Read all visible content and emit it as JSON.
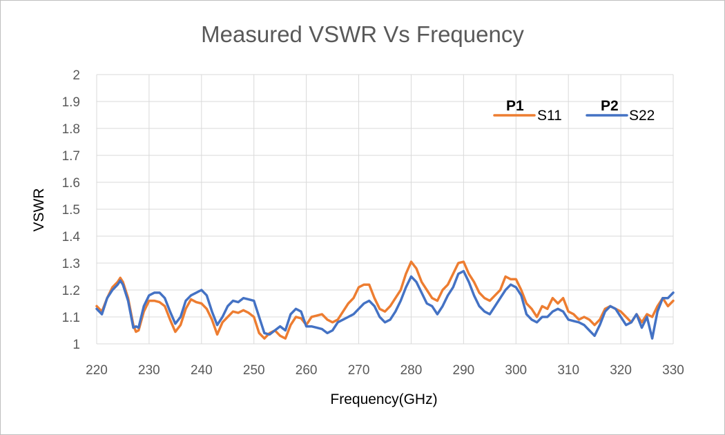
{
  "chart_data": {
    "type": "line",
    "title": "Measured VSWR Vs Frequency",
    "xlabel": "Frequency(GHz)",
    "ylabel": "VSWR",
    "xlim": [
      220,
      330
    ],
    "ylim": [
      1,
      2
    ],
    "x_ticks": [
      "220",
      "230",
      "240",
      "250",
      "260",
      "270",
      "280",
      "290",
      "300",
      "310",
      "320",
      "330"
    ],
    "y_ticks": [
      "1",
      "1.1",
      "1.2",
      "1.3",
      "1.4",
      "1.5",
      "1.6",
      "1.7",
      "1.8",
      "1.9",
      "2"
    ],
    "grid": true,
    "legend_position": "top-right",
    "series": [
      {
        "name": "S11",
        "tag": "P1",
        "color": "#ED7D31",
        "x": [
          220,
          221,
          222,
          223,
          224,
          224.5,
          225,
          226,
          227,
          227.5,
          228,
          229,
          230,
          231,
          232,
          233,
          234,
          235,
          236,
          237,
          238,
          239,
          240,
          241,
          242,
          243,
          244,
          245,
          246,
          247,
          248,
          249,
          250,
          251,
          252,
          253,
          254,
          255,
          256,
          257,
          258,
          259,
          260,
          261,
          262,
          263,
          264,
          265,
          266,
          267,
          268,
          269,
          270,
          271,
          272,
          273,
          274,
          275,
          276,
          277,
          278,
          279,
          280,
          281,
          282,
          283,
          284,
          285,
          286,
          287,
          288,
          289,
          290,
          291,
          292,
          293,
          294,
          295,
          296,
          297,
          298,
          299,
          300,
          301,
          302,
          303,
          304,
          305,
          306,
          307,
          308,
          309,
          310,
          311,
          312,
          313,
          314,
          315,
          316,
          317,
          318,
          319,
          320,
          321,
          322,
          323,
          324,
          325,
          326,
          327,
          328,
          329,
          330
        ],
        "values": [
          1.14,
          1.12,
          1.17,
          1.21,
          1.23,
          1.245,
          1.23,
          1.17,
          1.07,
          1.045,
          1.05,
          1.12,
          1.16,
          1.16,
          1.155,
          1.14,
          1.09,
          1.045,
          1.07,
          1.13,
          1.165,
          1.155,
          1.15,
          1.13,
          1.09,
          1.035,
          1.08,
          1.1,
          1.12,
          1.115,
          1.125,
          1.115,
          1.1,
          1.04,
          1.02,
          1.04,
          1.05,
          1.03,
          1.02,
          1.07,
          1.1,
          1.095,
          1.07,
          1.1,
          1.105,
          1.11,
          1.09,
          1.08,
          1.09,
          1.12,
          1.15,
          1.17,
          1.21,
          1.22,
          1.22,
          1.17,
          1.13,
          1.12,
          1.14,
          1.17,
          1.2,
          1.26,
          1.305,
          1.28,
          1.23,
          1.2,
          1.17,
          1.16,
          1.2,
          1.22,
          1.26,
          1.3,
          1.305,
          1.26,
          1.23,
          1.19,
          1.17,
          1.16,
          1.18,
          1.2,
          1.25,
          1.24,
          1.24,
          1.2,
          1.15,
          1.13,
          1.1,
          1.14,
          1.13,
          1.17,
          1.15,
          1.17,
          1.12,
          1.11,
          1.09,
          1.1,
          1.09,
          1.07,
          1.09,
          1.13,
          1.14,
          1.13,
          1.12,
          1.1,
          1.08,
          1.11,
          1.08,
          1.11,
          1.1,
          1.14,
          1.17,
          1.14,
          1.16
        ]
      },
      {
        "name": "S22",
        "tag": "P2",
        "color": "#4472C4",
        "x": [
          220,
          221,
          222,
          223,
          224,
          224.5,
          225,
          226,
          227,
          227.5,
          228,
          229,
          230,
          231,
          232,
          233,
          234,
          235,
          236,
          237,
          238,
          239,
          240,
          241,
          242,
          243,
          244,
          245,
          246,
          247,
          248,
          249,
          250,
          251,
          252,
          253,
          254,
          255,
          256,
          257,
          258,
          259,
          260,
          261,
          262,
          263,
          264,
          265,
          266,
          267,
          268,
          269,
          270,
          271,
          272,
          273,
          274,
          275,
          276,
          277,
          278,
          279,
          280,
          281,
          282,
          283,
          284,
          285,
          286,
          287,
          288,
          289,
          290,
          291,
          292,
          293,
          294,
          295,
          296,
          297,
          298,
          299,
          300,
          301,
          302,
          303,
          304,
          305,
          306,
          307,
          308,
          309,
          310,
          311,
          312,
          313,
          314,
          315,
          316,
          317,
          318,
          319,
          320,
          321,
          322,
          323,
          324,
          325,
          326,
          327,
          328,
          329,
          330
        ],
        "values": [
          1.13,
          1.11,
          1.17,
          1.2,
          1.22,
          1.235,
          1.22,
          1.16,
          1.06,
          1.065,
          1.06,
          1.14,
          1.18,
          1.19,
          1.19,
          1.17,
          1.12,
          1.075,
          1.1,
          1.16,
          1.18,
          1.19,
          1.2,
          1.18,
          1.12,
          1.07,
          1.1,
          1.14,
          1.16,
          1.155,
          1.17,
          1.165,
          1.16,
          1.1,
          1.04,
          1.035,
          1.05,
          1.065,
          1.05,
          1.11,
          1.13,
          1.12,
          1.065,
          1.065,
          1.06,
          1.055,
          1.04,
          1.05,
          1.08,
          1.09,
          1.1,
          1.11,
          1.13,
          1.15,
          1.16,
          1.14,
          1.1,
          1.08,
          1.09,
          1.12,
          1.16,
          1.21,
          1.25,
          1.23,
          1.19,
          1.15,
          1.14,
          1.11,
          1.14,
          1.18,
          1.21,
          1.26,
          1.27,
          1.23,
          1.18,
          1.14,
          1.12,
          1.11,
          1.14,
          1.17,
          1.2,
          1.22,
          1.21,
          1.18,
          1.11,
          1.09,
          1.08,
          1.1,
          1.1,
          1.12,
          1.13,
          1.12,
          1.09,
          1.085,
          1.08,
          1.07,
          1.05,
          1.03,
          1.07,
          1.12,
          1.14,
          1.13,
          1.1,
          1.07,
          1.08,
          1.11,
          1.06,
          1.1,
          1.02,
          1.12,
          1.17,
          1.17,
          1.19
        ]
      }
    ]
  }
}
